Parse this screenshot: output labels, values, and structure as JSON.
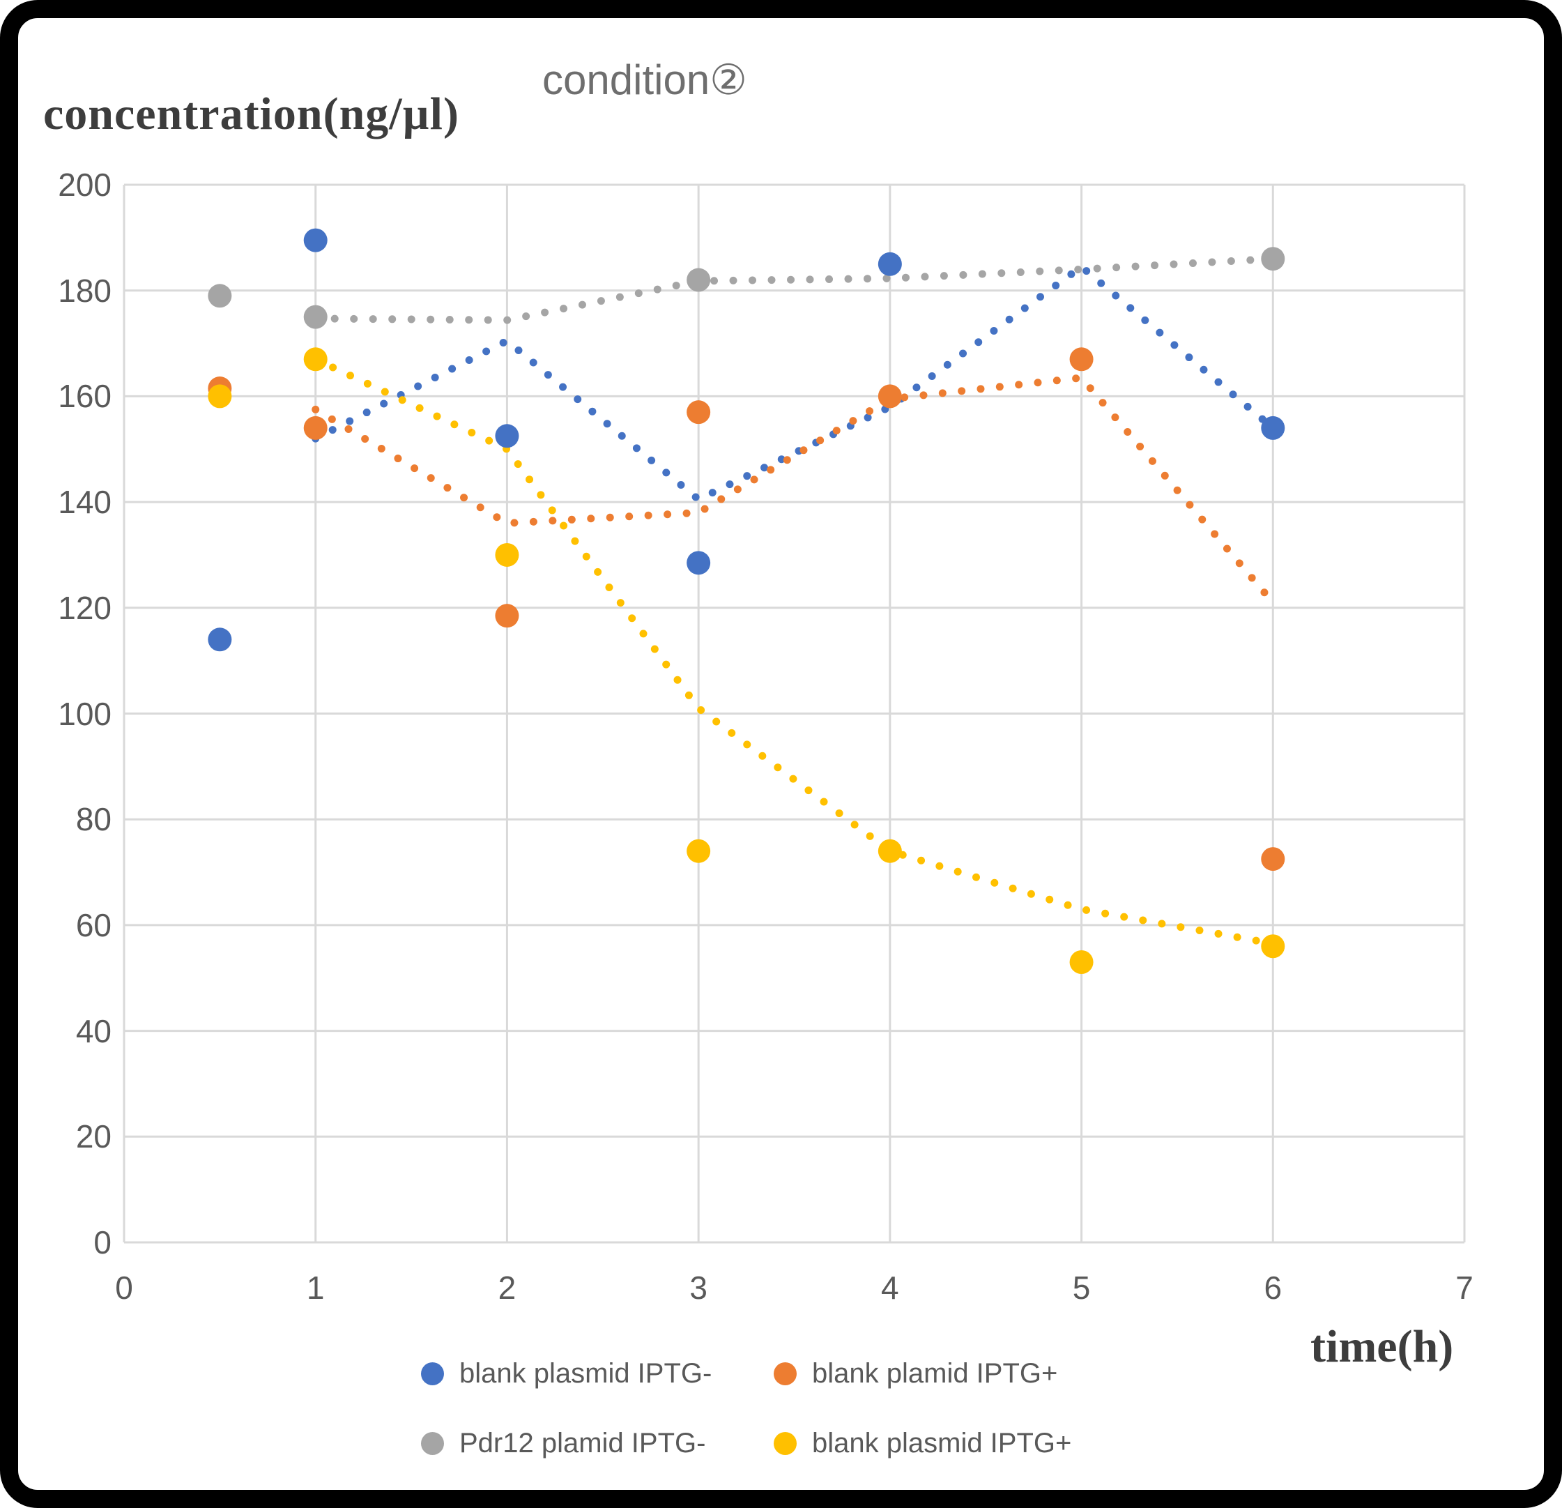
{
  "title": "condition②",
  "y_axis_title": "concentration(ng/µl)",
  "x_axis_title": "time(h)",
  "colors": {
    "blue": "#4472C4",
    "orange": "#ED7D31",
    "gray": "#A5A5A5",
    "yellow": "#FFC000",
    "gridline": "#D9D9D9",
    "tick_text": "#595959",
    "title_text": "#6E6E6E",
    "axis_title_text": "#3D3D3D",
    "frame": "#000000"
  },
  "chart_data": {
    "type": "scatter",
    "title": "condition②",
    "xlabel": "time(h)",
    "ylabel": "concentration(ng/µl)",
    "xlim": [
      0,
      7
    ],
    "ylim": [
      0,
      200
    ],
    "x_ticks": [
      0,
      1,
      2,
      3,
      4,
      5,
      6,
      7
    ],
    "y_ticks": [
      0,
      20,
      40,
      60,
      80,
      100,
      120,
      140,
      160,
      180,
      200
    ],
    "grid": true,
    "legend_position": "bottom",
    "marker_style": "large filled circles",
    "trend_style": "round-dot dotted lines",
    "series": [
      {
        "name": "blank plasmid IPTG-",
        "color": "#4472C4",
        "marker_points": [
          [
            0.5,
            114
          ],
          [
            1,
            189.5
          ],
          [
            2,
            152.5
          ],
          [
            3,
            128.5
          ],
          [
            4,
            185
          ],
          [
            6,
            154
          ]
        ],
        "dotted_trend": [
          [
            1,
            152
          ],
          [
            2,
            170.5
          ],
          [
            3,
            140.5
          ],
          [
            4,
            158
          ],
          [
            5,
            184.5
          ],
          [
            6,
            154
          ]
        ]
      },
      {
        "name": "blank plamid IPTG+",
        "color": "#ED7D31",
        "marker_points": [
          [
            0.5,
            161.5
          ],
          [
            1,
            154
          ],
          [
            2,
            118.5
          ],
          [
            3,
            157
          ],
          [
            4,
            160
          ],
          [
            5,
            167
          ],
          [
            6,
            72.5
          ]
        ],
        "dotted_trend": [
          [
            1,
            157.5
          ],
          [
            2,
            136
          ],
          [
            3,
            138
          ],
          [
            4,
            159.5
          ],
          [
            5,
            163.5
          ],
          [
            6,
            121
          ]
        ]
      },
      {
        "name": "Pdr12 plamid IPTG-",
        "color": "#A5A5A5",
        "marker_points": [
          [
            0.5,
            179
          ],
          [
            1,
            175
          ],
          [
            3,
            182
          ],
          [
            6,
            186
          ]
        ],
        "dotted_trend": [
          [
            1,
            174.7
          ],
          [
            2,
            174.4
          ],
          [
            3,
            181.8
          ],
          [
            4,
            182.3
          ],
          [
            5,
            184
          ],
          [
            6,
            186
          ]
        ]
      },
      {
        "name": "blank plasmid IPTG+",
        "color": "#FFC000",
        "marker_points": [
          [
            0.5,
            160
          ],
          [
            1,
            167
          ],
          [
            2,
            130
          ],
          [
            3,
            74
          ],
          [
            4,
            74
          ],
          [
            5,
            53
          ],
          [
            6,
            56
          ]
        ],
        "dotted_trend": [
          [
            1,
            167
          ],
          [
            2,
            150
          ],
          [
            3,
            101
          ],
          [
            4,
            74
          ],
          [
            5,
            63
          ],
          [
            6,
            56.5
          ]
        ]
      }
    ]
  }
}
